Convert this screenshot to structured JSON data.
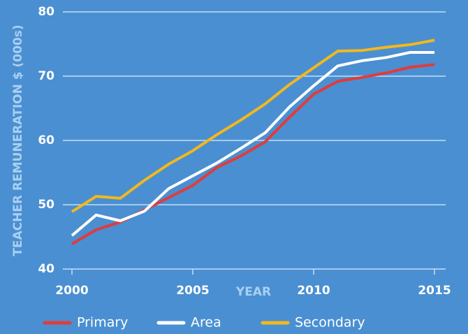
{
  "chart_data": {
    "type": "line",
    "x_label": "YEAR",
    "y_label": "TEACHER REMUNERATION $ (000s)",
    "x": [
      2000,
      2001,
      2002,
      2003,
      2004,
      2005,
      2006,
      2007,
      2008,
      2009,
      2010,
      2011,
      2012,
      2013,
      2014,
      2015
    ],
    "series": [
      {
        "name": "Primary",
        "color": "#e03c3c",
        "values": [
          43.9,
          46.1,
          47.3,
          49.2,
          51.1,
          53.0,
          55.8,
          57.6,
          59.8,
          63.6,
          67.2,
          69.2,
          69.8,
          70.5,
          71.4,
          71.8
        ]
      },
      {
        "name": "Area",
        "color": "#ffffff",
        "values": [
          45.2,
          48.4,
          47.5,
          49.0,
          52.5,
          54.5,
          56.5,
          58.8,
          61.2,
          65.2,
          68.5,
          71.6,
          72.4,
          72.9,
          73.7,
          73.7
        ]
      },
      {
        "name": "Secondary",
        "color": "#f2b81c",
        "values": [
          48.9,
          51.3,
          51.0,
          53.8,
          56.3,
          58.4,
          60.9,
          63.2,
          65.7,
          68.7,
          71.3,
          73.9,
          74.0,
          74.5,
          74.9,
          75.6
        ]
      }
    ],
    "xlim": [
      2000,
      2015
    ],
    "xticks": [
      2000,
      2005,
      2010,
      2015
    ],
    "ylim": [
      40,
      80
    ],
    "yticks": [
      40,
      50,
      60,
      70,
      80
    ],
    "grid": true,
    "legend": "bottom"
  }
}
